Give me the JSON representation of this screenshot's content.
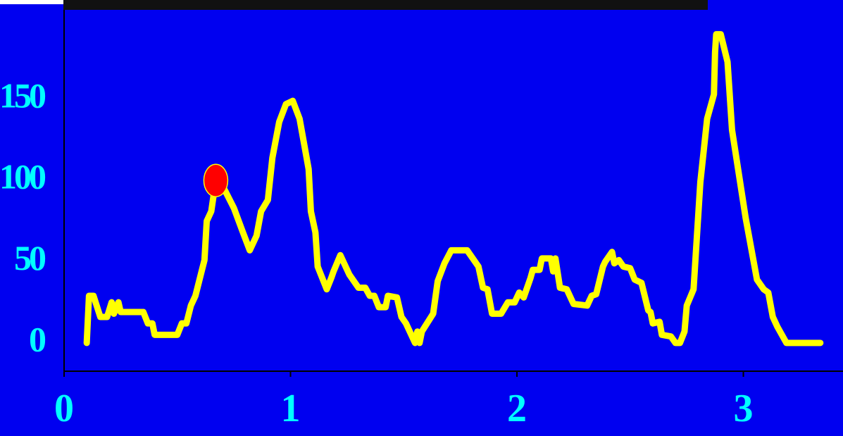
{
  "chart_data": {
    "type": "line",
    "background": "#0000f0",
    "x": [
      0.1,
      0.11,
      0.13,
      0.16,
      0.19,
      0.21,
      0.22,
      0.24,
      0.25,
      0.35,
      0.37,
      0.39,
      0.4,
      0.5,
      0.52,
      0.54,
      0.56,
      0.58,
      0.62,
      0.63,
      0.65,
      0.67,
      0.71,
      0.75,
      0.79,
      0.82,
      0.85,
      0.87,
      0.9,
      0.92,
      0.95,
      0.98,
      1.01,
      1.04,
      1.08,
      1.09,
      1.11,
      1.12,
      1.16,
      1.18,
      1.19,
      1.22,
      1.26,
      1.27,
      1.3,
      1.33,
      1.35,
      1.37,
      1.39,
      1.42,
      1.43,
      1.47,
      1.49,
      1.51,
      1.55,
      1.56,
      1.57,
      1.58,
      1.63,
      1.65,
      1.68,
      1.71,
      1.78,
      1.83,
      1.85,
      1.87,
      1.89,
      1.93,
      1.96,
      1.99,
      2.01,
      2.03,
      2.06,
      2.07,
      2.1,
      2.11,
      2.15,
      2.16,
      2.17,
      2.19,
      2.22,
      2.25,
      2.31,
      2.33,
      2.35,
      2.38,
      2.39,
      2.42,
      2.43,
      2.45,
      2.47,
      2.5,
      2.52,
      2.55,
      2.58,
      2.59,
      2.6,
      2.63,
      2.64,
      2.68,
      2.7,
      2.72,
      2.74,
      2.75,
      2.78,
      2.81,
      2.84,
      2.87,
      2.875,
      2.88,
      2.9,
      2.93,
      2.95,
      3.01,
      3.06,
      3.09,
      3.11,
      3.13,
      3.15,
      3.19,
      3.34
    ],
    "series": [
      {
        "color": "#ffff00",
        "values": [
          0,
          29,
          29,
          16,
          16,
          25,
          18,
          25,
          19,
          19,
          12,
          12,
          5,
          5,
          12,
          12,
          23,
          29,
          51,
          75,
          81,
          100,
          94,
          83,
          68,
          57,
          66,
          81,
          88,
          114,
          136,
          147,
          149,
          138,
          107,
          81,
          68,
          47,
          33,
          40,
          44,
          54,
          42,
          40,
          34,
          34,
          29,
          29,
          22,
          22,
          29,
          28,
          16,
          12,
          0,
          7,
          0,
          7,
          18,
          38,
          49,
          57,
          57,
          47,
          34,
          33,
          18,
          18,
          25,
          25,
          31,
          28,
          40,
          45,
          45,
          52,
          52,
          44,
          52,
          34,
          33,
          24,
          23,
          29,
          30,
          47,
          50,
          56,
          49,
          51,
          47,
          46,
          39,
          37,
          20,
          19,
          12,
          13,
          5,
          4,
          0,
          0,
          7,
          23,
          33,
          99,
          138,
          153,
          179,
          190,
          190,
          173,
          131,
          77,
          39,
          33,
          31,
          16,
          10,
          0,
          0
        ]
      }
    ],
    "marker": {
      "x": 0.67,
      "y": 100,
      "color": "#ff0000"
    },
    "xlim": [
      0,
      3.44
    ],
    "xticks": [
      0,
      1,
      2,
      3
    ],
    "ylim": [
      -17.4,
      205
    ],
    "yticks": [
      0,
      50,
      100,
      150
    ],
    "tick_color": "#00ffff"
  }
}
